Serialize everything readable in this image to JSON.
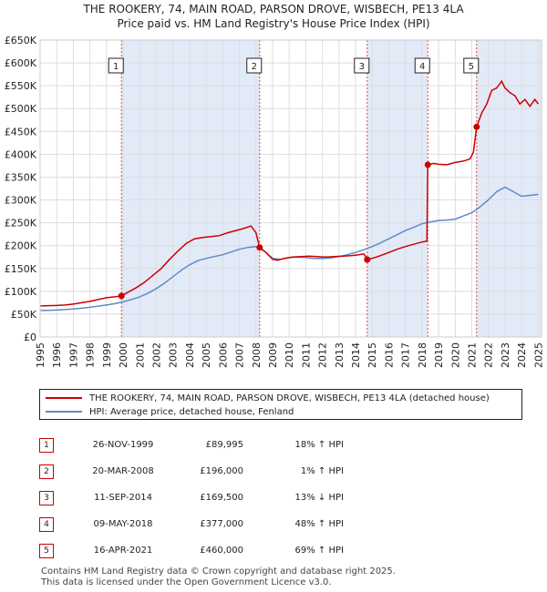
{
  "title_line1": "THE ROOKERY, 74, MAIN ROAD, PARSON DROVE, WISBECH, PE13 4LA",
  "title_line2": "Price paid vs. HM Land Registry's House Price Index (HPI)",
  "colors": {
    "property": "#cc0000",
    "hpi": "#5b8dc8",
    "shade": "#dde6f7"
  },
  "chart_data": {
    "type": "line",
    "xlim": [
      1995,
      2025.2
    ],
    "ylim": [
      0,
      650000
    ],
    "yticks": [
      {
        "value": 0,
        "label": "£0"
      },
      {
        "value": 50000,
        "label": "£50K"
      },
      {
        "value": 100000,
        "label": "£100K"
      },
      {
        "value": 150000,
        "label": "£150K"
      },
      {
        "value": 200000,
        "label": "£200K"
      },
      {
        "value": 250000,
        "label": "£250K"
      },
      {
        "value": 300000,
        "label": "£300K"
      },
      {
        "value": 350000,
        "label": "£350K"
      },
      {
        "value": 400000,
        "label": "£400K"
      },
      {
        "value": 450000,
        "label": "£450K"
      },
      {
        "value": 500000,
        "label": "£500K"
      },
      {
        "value": 550000,
        "label": "£550K"
      },
      {
        "value": 600000,
        "label": "£600K"
      },
      {
        "value": 650000,
        "label": "£650K"
      }
    ],
    "xticks": [
      1995,
      1996,
      1997,
      1998,
      1999,
      2000,
      2001,
      2002,
      2003,
      2004,
      2005,
      2006,
      2007,
      2008,
      2009,
      2010,
      2011,
      2012,
      2013,
      2014,
      2015,
      2016,
      2017,
      2018,
      2019,
      2020,
      2021,
      2022,
      2023,
      2024,
      2025
    ],
    "shaded_ranges": [
      [
        1999.9,
        2008.22
      ],
      [
        2014.7,
        2018.35
      ],
      [
        2021.29,
        2025.2
      ]
    ],
    "series": [
      {
        "name": "THE ROOKERY, 74, MAIN ROAD, PARSON DROVE, WISBECH, PE13 4LA (detached house)",
        "color": "#cc0000",
        "x": [
          1995,
          1995.5,
          1996,
          1996.5,
          1997,
          1997.5,
          1998,
          1998.5,
          1999,
          1999.5,
          1999.9,
          2000.3,
          2000.8,
          2001.3,
          2001.8,
          2002.3,
          2002.8,
          2003.3,
          2003.8,
          2004.3,
          2004.8,
          2005.3,
          2005.8,
          2006.3,
          2006.8,
          2007.3,
          2007.7,
          2008.0,
          2008.22,
          2008.6,
          2009.0,
          2009.3,
          2009.7,
          2010.2,
          2010.7,
          2011.2,
          2011.7,
          2012.2,
          2012.7,
          2013.2,
          2013.7,
          2014.2,
          2014.5,
          2014.7,
          2015.0,
          2015.5,
          2016.0,
          2016.5,
          2017.0,
          2017.5,
          2018.0,
          2018.3,
          2018.35,
          2018.7,
          2019.0,
          2019.5,
          2020.0,
          2020.5,
          2020.9,
          2021.1,
          2021.29,
          2021.6,
          2021.9,
          2022.2,
          2022.5,
          2022.8,
          2023.0,
          2023.3,
          2023.6,
          2023.9,
          2024.2,
          2024.5,
          2024.8,
          2025.0
        ],
        "y": [
          68000,
          68500,
          69000,
          70000,
          72000,
          75000,
          78000,
          82000,
          86000,
          88000,
          89995,
          98000,
          108000,
          120000,
          135000,
          150000,
          170000,
          188000,
          205000,
          215000,
          218000,
          220000,
          222000,
          228000,
          233000,
          238000,
          243000,
          228000,
          196000,
          185000,
          170000,
          168000,
          172000,
          175000,
          176000,
          177000,
          176000,
          175000,
          176000,
          177000,
          178000,
          180000,
          182000,
          169500,
          172000,
          178000,
          185000,
          192000,
          198000,
          203000,
          208000,
          210000,
          377000,
          380000,
          378000,
          377000,
          382000,
          385000,
          390000,
          405000,
          460000,
          490000,
          510000,
          540000,
          545000,
          560000,
          545000,
          535000,
          528000,
          510000,
          520000,
          505000,
          520000,
          510000
        ]
      },
      {
        "name": "HPI: Average price, detached house, Fenland",
        "color": "#5b8dc8",
        "x": [
          1995,
          1995.5,
          1996,
          1996.5,
          1997,
          1997.5,
          1998,
          1998.5,
          1999,
          1999.5,
          2000,
          2000.5,
          2001,
          2001.5,
          2002,
          2002.5,
          2003,
          2003.5,
          2004,
          2004.5,
          2005,
          2005.5,
          2006,
          2006.5,
          2007,
          2007.5,
          2008,
          2008.5,
          2009,
          2009.5,
          2010,
          2010.5,
          2011,
          2011.5,
          2012,
          2012.5,
          2013,
          2013.5,
          2014,
          2014.5,
          2015,
          2015.5,
          2016,
          2016.5,
          2017,
          2017.5,
          2018,
          2018.5,
          2019,
          2019.5,
          2020,
          2020.5,
          2021,
          2021.5,
          2022,
          2022.5,
          2023,
          2023.5,
          2024,
          2024.5,
          2025
        ],
        "y": [
          58000,
          58500,
          59000,
          60000,
          61500,
          63000,
          65000,
          67500,
          70000,
          73000,
          77000,
          82000,
          88000,
          96000,
          106000,
          118000,
          132000,
          146000,
          158000,
          167000,
          172000,
          176000,
          180000,
          186000,
          192000,
          196000,
          198000,
          188000,
          172000,
          170000,
          174000,
          175000,
          174000,
          172000,
          172000,
          173000,
          176000,
          180000,
          185000,
          191000,
          198000,
          206000,
          215000,
          224000,
          233000,
          240000,
          248000,
          252000,
          255000,
          256000,
          258000,
          265000,
          272000,
          285000,
          300000,
          318000,
          328000,
          318000,
          308000,
          310000,
          312000
        ]
      }
    ],
    "sale_markers": [
      {
        "label": "1",
        "x": 1999.9,
        "y": 89995
      },
      {
        "label": "2",
        "x": 2008.22,
        "y": 196000
      },
      {
        "label": "3",
        "x": 2014.7,
        "y": 169500
      },
      {
        "label": "4",
        "x": 2018.35,
        "y": 377000
      },
      {
        "label": "5",
        "x": 2021.29,
        "y": 460000
      }
    ]
  },
  "legend": {
    "property_label": "THE ROOKERY, 74, MAIN ROAD, PARSON DROVE, WISBECH, PE13 4LA (detached house)",
    "hpi_label": "HPI: Average price, detached house, Fenland"
  },
  "sales": [
    {
      "num": "1",
      "date": "26-NOV-1999",
      "price": "£89,995",
      "hpi": "18% ↑ HPI"
    },
    {
      "num": "2",
      "date": "20-MAR-2008",
      "price": "£196,000",
      "hpi": "1% ↑ HPI"
    },
    {
      "num": "3",
      "date": "11-SEP-2014",
      "price": "£169,500",
      "hpi": "13% ↓ HPI"
    },
    {
      "num": "4",
      "date": "09-MAY-2018",
      "price": "£377,000",
      "hpi": "48% ↑ HPI"
    },
    {
      "num": "5",
      "date": "16-APR-2021",
      "price": "£460,000",
      "hpi": "69% ↑ HPI"
    }
  ],
  "footer_line1": "Contains HM Land Registry data © Crown copyright and database right 2025.",
  "footer_line2": "This data is licensed under the Open Government Licence v3.0."
}
